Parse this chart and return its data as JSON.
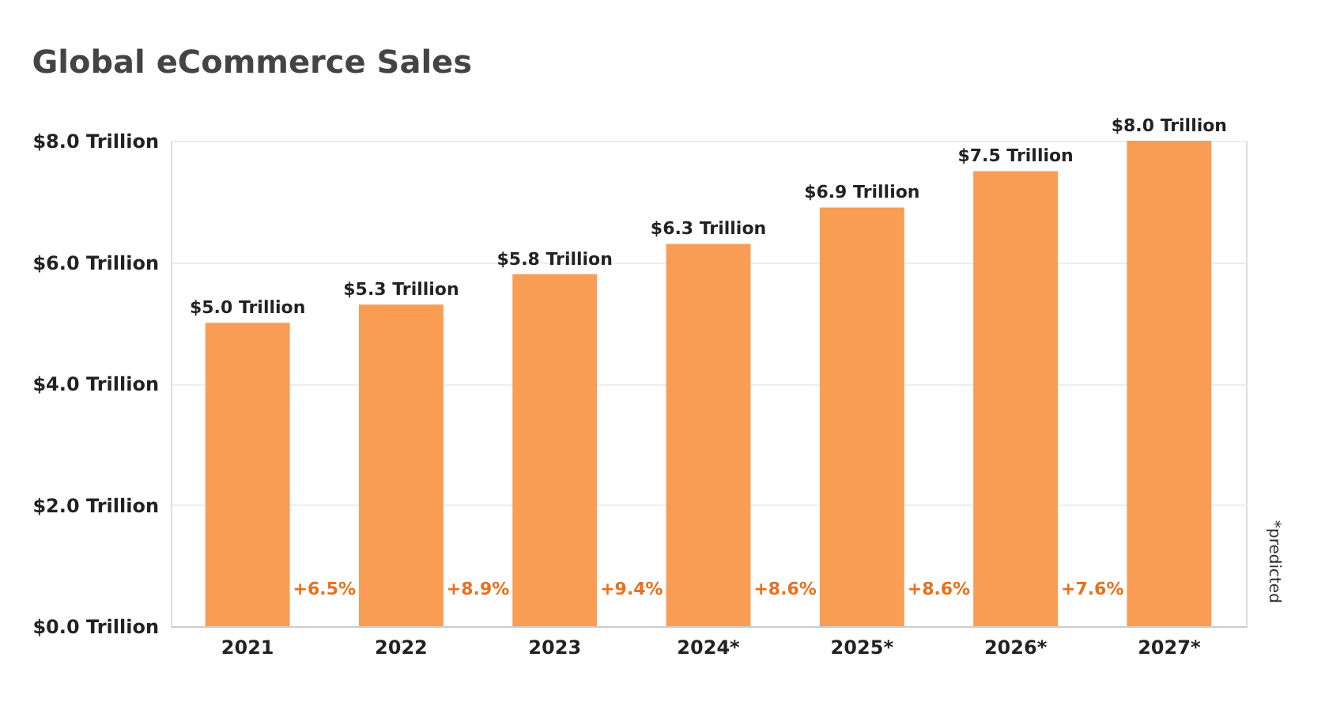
{
  "chart_data": {
    "type": "bar",
    "title": "Global eCommerce Sales",
    "categories": [
      "2021",
      "2022",
      "2023",
      "2024*",
      "2025*",
      "2026*",
      "2027*"
    ],
    "values": [
      5.0,
      5.3,
      5.8,
      6.3,
      6.9,
      7.5,
      8.0
    ],
    "value_labels": [
      "$5.0 Trillion",
      "$5.3 Trillion",
      "$5.8 Trillion",
      "$6.3 Trillion",
      "$6.9 Trillion",
      "$7.5 Trillion",
      "$8.0 Trillion"
    ],
    "color": "#f99d55",
    "ylim": [
      0,
      8
    ],
    "yticks": [
      {
        "value": 0,
        "label": "$0.0 Trillion"
      },
      {
        "value": 2,
        "label": "$2.0 Trillion"
      },
      {
        "value": 4,
        "label": "$4.0 Trillion"
      },
      {
        "value": 6,
        "label": "$6.0 Trillion"
      },
      {
        "value": 8,
        "label": "$8.0 Trillion"
      }
    ],
    "grid": "y",
    "annotations": [
      "+6.5%",
      "+8.9%",
      "+9.4%",
      "+8.6%",
      "+8.6%",
      "+7.6%",
      "*predicted"
    ]
  }
}
